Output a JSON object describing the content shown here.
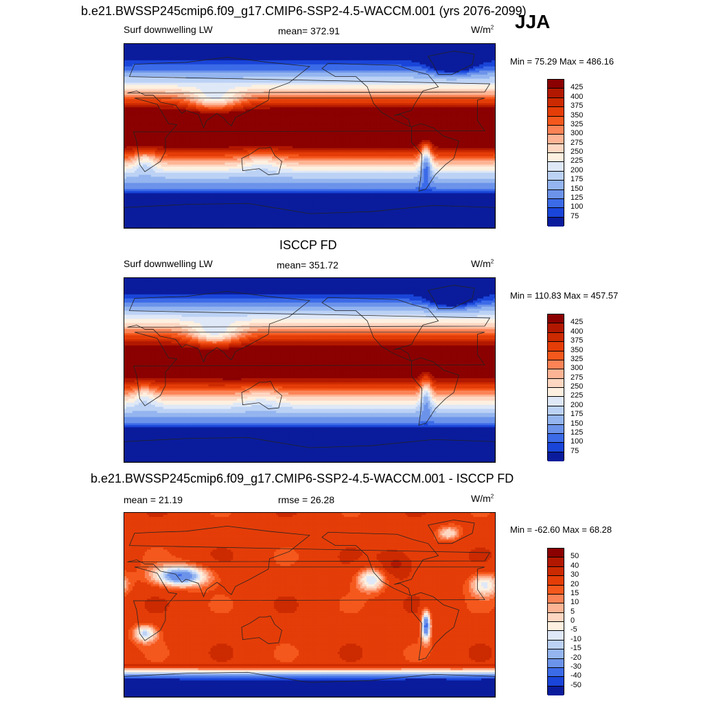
{
  "season": "JJA",
  "panels": [
    {
      "title": "b.e21.BWSSP245cmip6.f09_g17.CMIP6-SSP2-4.5-WACCM.001 (yrs 2076-2099)",
      "left_label": "Surf downwelling LW",
      "center_label": "mean= 372.91",
      "units": "W/m",
      "units_exp": "2",
      "minmax": "Min =  75.29 Max = 486.16",
      "colorbar_labels": [
        "425",
        "400",
        "375",
        "350",
        "325",
        "300",
        "275",
        "250",
        "225",
        "200",
        "175",
        "150",
        "125",
        "100",
        "75"
      ],
      "colorbar_colors": [
        "#8b0000",
        "#b21800",
        "#cc2a00",
        "#e43d08",
        "#f5581c",
        "#fb8356",
        "#fdb494",
        "#fed7c2",
        "#fdf0e0",
        "#dfe8f7",
        "#bcd2f5",
        "#94b5ef",
        "#6c93ea",
        "#3c6be8",
        "#1a45d9",
        "#0a1c9c"
      ],
      "field": "model"
    },
    {
      "title": "ISCCP FD",
      "left_label": "Surf downwelling LW",
      "center_label": "mean= 351.72",
      "units": "W/m",
      "units_exp": "2",
      "minmax": "Min = 110.83 Max = 457.57",
      "colorbar_labels": [
        "425",
        "400",
        "375",
        "350",
        "325",
        "300",
        "275",
        "250",
        "225",
        "200",
        "175",
        "150",
        "125",
        "100",
        "75"
      ],
      "colorbar_colors": [
        "#8b0000",
        "#b21800",
        "#cc2a00",
        "#e43d08",
        "#f5581c",
        "#fb8356",
        "#fdb494",
        "#fed7c2",
        "#fdf0e0",
        "#dfe8f7",
        "#bcd2f5",
        "#94b5ef",
        "#6c93ea",
        "#3c6be8",
        "#1a45d9",
        "#0a1c9c"
      ],
      "field": "obs"
    },
    {
      "title": "b.e21.BWSSP245cmip6.f09_g17.CMIP6-SSP2-4.5-WACCM.001 - ISCCP FD",
      "left_label": "mean =  21.19",
      "center_label": "rmse =  26.28",
      "units": "W/m",
      "units_exp": "2",
      "minmax": "Min = -62.60 Max =  68.28",
      "colorbar_labels": [
        "50",
        "40",
        "30",
        "20",
        "15",
        "10",
        "5",
        "0",
        "-5",
        "-10",
        "-15",
        "-20",
        "-30",
        "-40",
        "-50"
      ],
      "colorbar_colors": [
        "#8b0000",
        "#b21800",
        "#cc2a00",
        "#e43d08",
        "#f5581c",
        "#fb8356",
        "#fdb494",
        "#fed7c2",
        "#fdf0e0",
        "#dfe8f7",
        "#bcd2f5",
        "#94b5ef",
        "#6c93ea",
        "#3c6be8",
        "#1a45d9",
        "#0a1c9c"
      ],
      "field": "diff"
    }
  ]
}
